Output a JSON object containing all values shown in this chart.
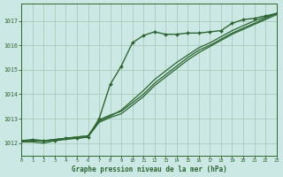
{
  "title": "Graphe pression niveau de la mer (hPa)",
  "background_color": "#cce8e4",
  "grid_color": "#aaccbb",
  "line_color": "#2d6632",
  "xlim": [
    0,
    23
  ],
  "ylim": [
    1011.5,
    1017.7
  ],
  "yticks": [
    1012,
    1013,
    1014,
    1015,
    1016,
    1017
  ],
  "xticks": [
    0,
    1,
    2,
    3,
    4,
    5,
    6,
    7,
    8,
    9,
    10,
    11,
    12,
    13,
    14,
    15,
    16,
    17,
    18,
    19,
    20,
    21,
    22,
    23
  ],
  "series": [
    {
      "y": [
        1012.1,
        1012.15,
        1012.1,
        1012.1,
        1012.2,
        1012.2,
        1012.25,
        1013.0,
        1014.4,
        1015.15,
        1016.1,
        1016.4,
        1016.55,
        1016.45,
        1016.45,
        1016.5,
        1016.5,
        1016.55,
        1016.6,
        1016.9,
        1017.05,
        1017.1,
        1017.2,
        1017.3
      ],
      "marker": true,
      "lw": 1.0
    },
    {
      "y": [
        1012.1,
        1012.1,
        1012.1,
        1012.15,
        1012.2,
        1012.25,
        1012.3,
        1012.9,
        1013.1,
        1013.35,
        1013.75,
        1014.15,
        1014.6,
        1014.95,
        1015.3,
        1015.6,
        1015.9,
        1016.1,
        1016.35,
        1016.6,
        1016.8,
        1017.0,
        1017.15,
        1017.3
      ],
      "marker": false,
      "lw": 0.9
    },
    {
      "y": [
        1012.1,
        1012.1,
        1012.1,
        1012.15,
        1012.2,
        1012.25,
        1012.3,
        1012.95,
        1013.15,
        1013.3,
        1013.65,
        1014.0,
        1014.45,
        1014.8,
        1015.15,
        1015.5,
        1015.8,
        1016.0,
        1016.25,
        1016.5,
        1016.7,
        1016.9,
        1017.1,
        1017.3
      ],
      "marker": false,
      "lw": 0.9
    },
    {
      "y": [
        1012.05,
        1012.05,
        1012.0,
        1012.1,
        1012.15,
        1012.2,
        1012.25,
        1012.85,
        1013.05,
        1013.2,
        1013.55,
        1013.9,
        1014.35,
        1014.7,
        1015.05,
        1015.4,
        1015.7,
        1015.95,
        1016.2,
        1016.45,
        1016.65,
        1016.85,
        1017.05,
        1017.25
      ],
      "marker": false,
      "lw": 0.9
    }
  ]
}
